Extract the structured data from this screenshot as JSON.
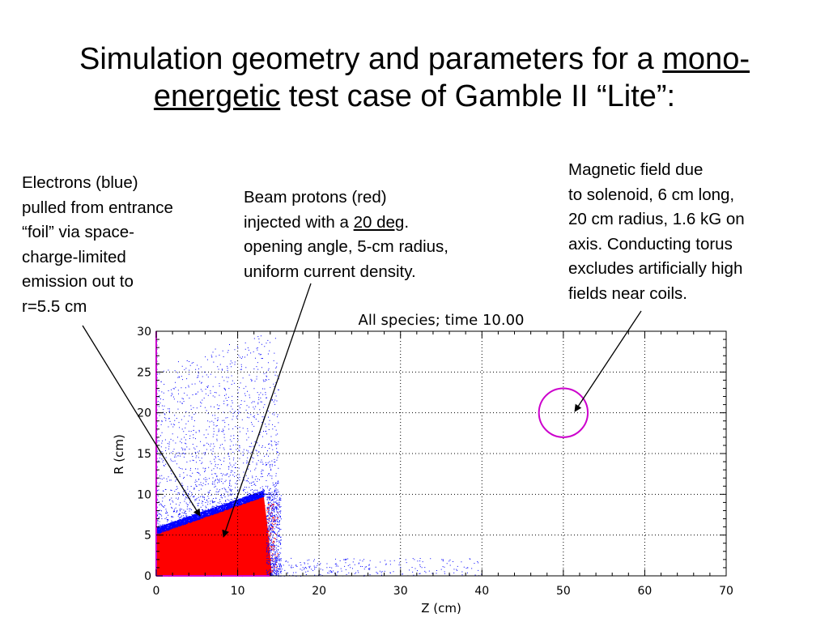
{
  "slide": {
    "title": {
      "part1": "Simulation geometry and parameters for a ",
      "underlined1": "mono-",
      "underlined2": "energetic",
      "part2": " test case of Gamble II “Lite”:"
    },
    "notes": {
      "electrons": {
        "lines": [
          "Electrons (blue)",
          "pulled from entrance",
          "“foil” via space-",
          "charge-limited",
          "emission out to",
          "r=5.5 cm"
        ]
      },
      "protons": {
        "line1": "Beam protons (red)",
        "line2_pre": "injected with a ",
        "line2_underlined": "20 deg",
        "line2_post": ".",
        "line3": "opening angle, 5-cm radius,",
        "line4": "uniform current density."
      },
      "field": {
        "lines": [
          "Magnetic field due",
          "to solenoid, 6 cm long,",
          "20 cm radius, 1.6 kG on",
          "axis.  Conducting torus",
          "excludes artificially high",
          "fields near coils."
        ]
      }
    }
  },
  "chart_data": {
    "type": "scatter",
    "title": "All species; time 10.00",
    "xlabel": "Z (cm)",
    "ylabel": "R (cm)",
    "xlim": [
      0,
      70
    ],
    "ylim": [
      0,
      30
    ],
    "xticks": [
      "0",
      "10",
      "20",
      "30",
      "40",
      "50",
      "60",
      "70"
    ],
    "yticks": [
      "0",
      "5",
      "10",
      "15",
      "20",
      "25",
      "30"
    ],
    "grid": true,
    "grid_style": "dotted",
    "series": [
      {
        "species": "protons",
        "color": "#ff0000",
        "region_outline": [
          [
            0,
            0
          ],
          [
            0,
            5.3
          ],
          [
            13.2,
            9.8
          ],
          [
            13.8,
            5
          ],
          [
            14.2,
            0
          ]
        ]
      },
      {
        "species": "electrons",
        "color": "#0000ff",
        "boundary": [
          [
            0,
            5.4
          ],
          [
            13.2,
            10.0
          ]
        ]
      }
    ],
    "conducting_torus": {
      "center": [
        50,
        20
      ],
      "radius": 3,
      "color": "#cc00cc"
    },
    "axis_color": "#cc00cc"
  }
}
